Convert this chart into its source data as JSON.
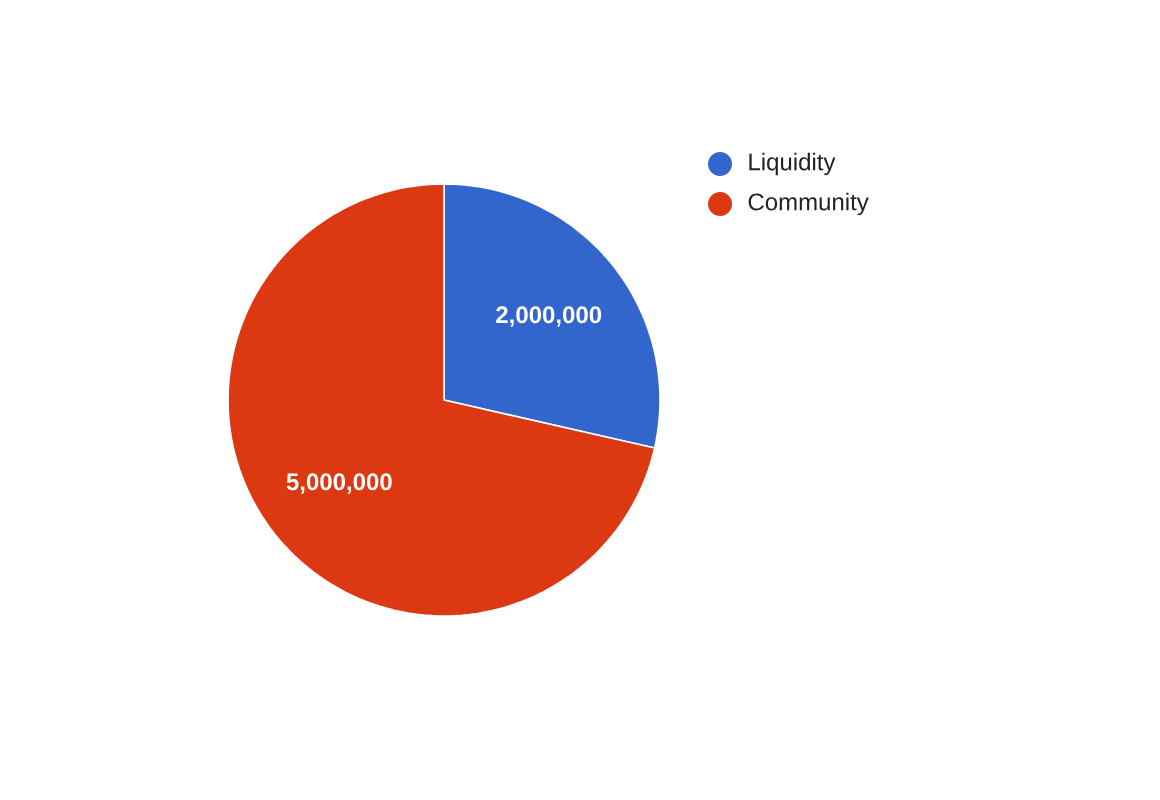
{
  "chart_data": {
    "type": "pie",
    "categories": [
      "Liquidity",
      "Community"
    ],
    "values": [
      2000000,
      5000000
    ],
    "value_labels": [
      "2,000,000",
      "5,000,000"
    ],
    "colors": [
      "#3366cc",
      "#dc3912"
    ],
    "legend": "top right"
  }
}
